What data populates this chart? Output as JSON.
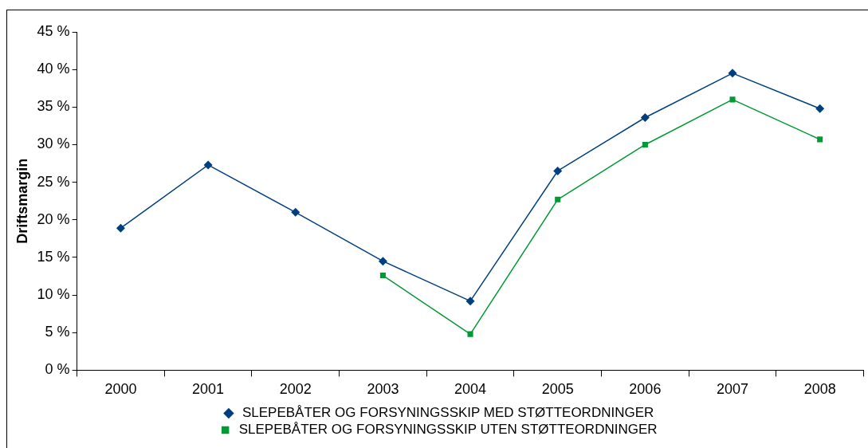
{
  "chart_data": {
    "type": "line",
    "ylabel": "Driftsmargin",
    "categories": [
      "2000",
      "2001",
      "2002",
      "2003",
      "2004",
      "2005",
      "2006",
      "2007",
      "2008"
    ],
    "series": [
      {
        "name": "SLEPEBÅTER OG FORSYNINGSSKIP MED STØTTEORDNINGER",
        "color": "#003f7f",
        "marker": "diamond",
        "values": [
          18.9,
          27.3,
          21.0,
          14.5,
          9.2,
          26.5,
          33.6,
          39.5,
          34.8
        ]
      },
      {
        "name": "SLEPEBÅTER OG FORSYNINGSSKIP UTEN STØTTEORDNINGER",
        "color": "#009933",
        "marker": "square",
        "values": [
          null,
          null,
          null,
          12.6,
          4.8,
          22.7,
          30.0,
          36.0,
          30.7
        ]
      }
    ],
    "ylim": [
      0,
      45
    ],
    "yticks": [
      {
        "value": 0,
        "label": "0 %"
      },
      {
        "value": 5,
        "label": "5 %"
      },
      {
        "value": 10,
        "label": "10 %"
      },
      {
        "value": 15,
        "label": "15 %"
      },
      {
        "value": 20,
        "label": "20 %"
      },
      {
        "value": 25,
        "label": "25 %"
      },
      {
        "value": 30,
        "label": "30 %"
      },
      {
        "value": 35,
        "label": "35 %"
      },
      {
        "value": 40,
        "label": "40 %"
      },
      {
        "value": 45,
        "label": "45 %"
      }
    ],
    "grid": false,
    "legend": "bottom",
    "line_style": "solid"
  }
}
